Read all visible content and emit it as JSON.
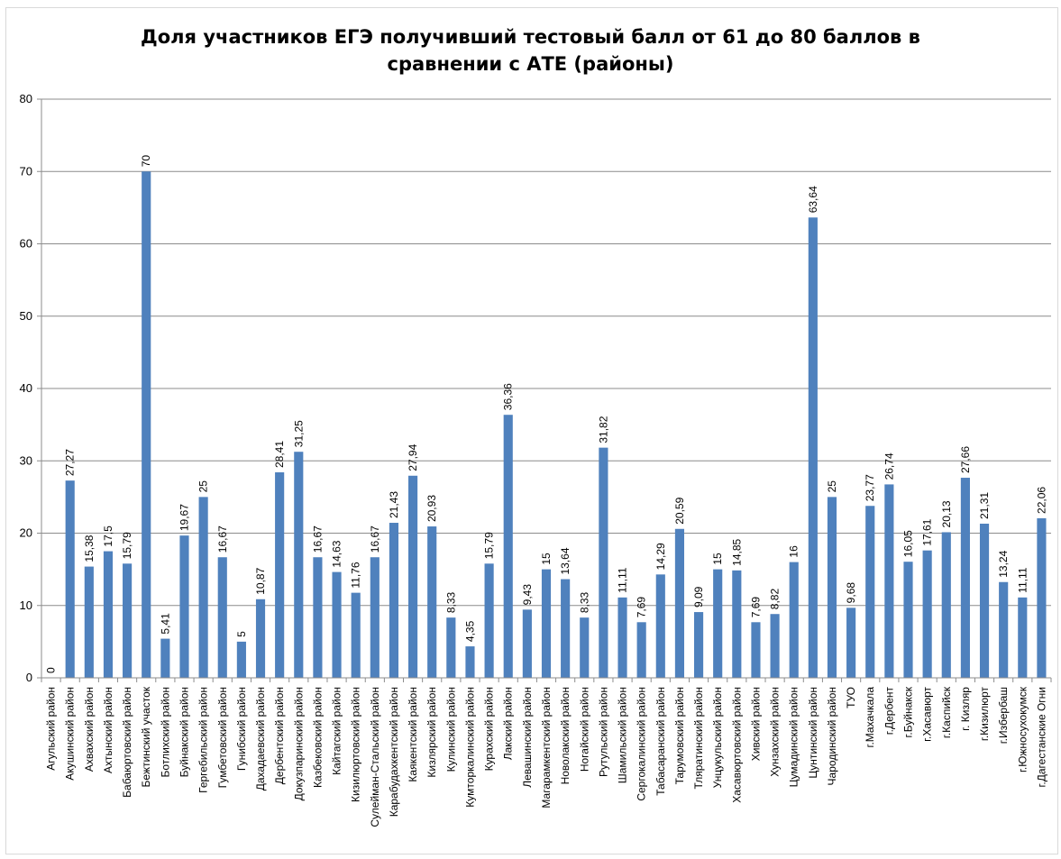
{
  "chart_data": {
    "type": "bar",
    "title_line1": "Доля участников ЕГЭ получивший тестовый балл от 61 до 80 баллов в",
    "title_line2": "сравнении с АТЕ (районы)",
    "xlabel": "",
    "ylabel": "",
    "ylim": [
      0,
      80
    ],
    "yticks": [
      0,
      10,
      20,
      30,
      40,
      50,
      60,
      70,
      80
    ],
    "grid": true,
    "legend": "none",
    "bar_color": "#4f81bd",
    "categories": [
      "Агульский район",
      "Акушинский район",
      "Ахвахский район",
      "Ахтынский район",
      "Бабаюртовский район",
      "Бежтинский участок",
      "Ботлихский район",
      "Буйнакский район",
      "Гергебильский район",
      "Гумбетовский район",
      "Гунибский район",
      "Дахадаевский район",
      "Дербентский район",
      "Докузпаринский район",
      "Казбековский район",
      "Кайтагский район",
      "Кизилюртовский район",
      "Сулейман-Стальский район",
      "Карабудахкентский район",
      "Каякентский район",
      "Кизлярский район",
      "Кулинский район",
      "Кумторкалинский район",
      "Курахский район",
      "Лакский район",
      "Левашинский район",
      "Магарамкентский район",
      "Новолакский район",
      "Ногайский район",
      "Рутульский район",
      "Шамильский район",
      "Сергокалинский район",
      "Табасаранский район",
      "Тарумовский район",
      "Тляратинский район",
      "Унцукульский район",
      "Хасавюртовский район",
      "Хивский район",
      "Хунзахский район",
      "Цумадинский район",
      "Цунтинский район",
      "Чародинский район",
      "ТУО",
      "г.Махачкала",
      "г.Дербент",
      "г.Буйнакск",
      "г.Хасавюрт",
      "г.Каспийск",
      "г. Кизляр",
      "г.Кизилюрт",
      "г.Избербаш",
      "г.Южносухокумск",
      "г.Дагестанские Огни"
    ],
    "values": [
      0,
      27.27,
      15.38,
      17.5,
      15.79,
      70,
      5.41,
      19.67,
      25,
      16.67,
      5,
      10.87,
      28.41,
      31.25,
      16.67,
      14.63,
      11.76,
      16.67,
      21.43,
      27.94,
      20.93,
      8.33,
      4.35,
      15.79,
      36.36,
      9.43,
      15,
      13.64,
      8.33,
      31.82,
      11.11,
      7.69,
      14.29,
      20.59,
      9.09,
      15,
      14.85,
      7.69,
      8.82,
      16,
      63.64,
      25,
      9.68,
      23.77,
      26.74,
      16.05,
      17.61,
      20.13,
      27.66,
      21.31,
      13.24,
      11.11,
      22.06
    ],
    "data_labels": [
      "0",
      "27,27",
      "15,38",
      "17,5",
      "15,79",
      "70",
      "5,41",
      "19,67",
      "25",
      "16,67",
      "5",
      "10,87",
      "28,41",
      "31,25",
      "16,67",
      "14,63",
      "11,76",
      "16,67",
      "21,43",
      "27,94",
      "20,93",
      "8,33",
      "4,35",
      "15,79",
      "36,36",
      "9,43",
      "15",
      "13,64",
      "8,33",
      "31,82",
      "11,11",
      "7,69",
      "14,29",
      "20,59",
      "9,09",
      "15",
      "14,85",
      "7,69",
      "8,82",
      "16",
      "63,64",
      "25",
      "9,68",
      "23,77",
      "26,74",
      "16,05",
      "17,61",
      "20,13",
      "27,66",
      "21,31",
      "13,24",
      "11,11",
      "22,06"
    ]
  }
}
